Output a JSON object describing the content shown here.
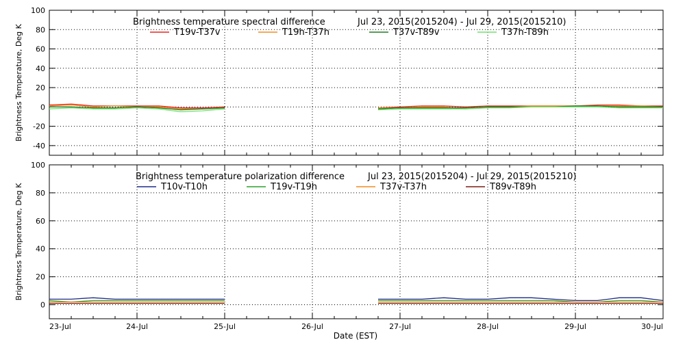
{
  "x_axis_label": "Date (EST)",
  "x_tick_labels": [
    "23-Jul",
    "24-Jul",
    "25-Jul",
    "26-Jul",
    "27-Jul",
    "28-Jul",
    "29-Jul",
    "30-Jul"
  ],
  "chart_data": [
    {
      "type": "line",
      "title": "Brightness temperature spectral difference",
      "date_range": "Jul 23, 2015(2015204) - Jul 29, 2015(2015210)",
      "ylabel": "Brightness Temperature, Deg K",
      "xlabel": "",
      "xlim": [
        "2015-07-23",
        "2015-07-30"
      ],
      "ylim": [
        -50,
        100
      ],
      "yticks": [
        -40,
        -20,
        0,
        20,
        40,
        60,
        80,
        100
      ],
      "grid": true,
      "legend_position": "top",
      "data_gap": [
        "2015-07-25",
        "2015-07-26 18:00"
      ],
      "series": [
        {
          "name": "T19v-T37v",
          "color": "#e8231f",
          "x": [
            "2015-07-23 00:00",
            "2015-07-23 06:00",
            "2015-07-23 12:00",
            "2015-07-23 18:00",
            "2015-07-24 00:00",
            "2015-07-24 06:00",
            "2015-07-24 12:00",
            "2015-07-24 18:00",
            "2015-07-25 00:00",
            "2015-07-26 18:00",
            "2015-07-27 00:00",
            "2015-07-27 06:00",
            "2015-07-27 12:00",
            "2015-07-27 18:00",
            "2015-07-28 00:00",
            "2015-07-28 06:00",
            "2015-07-28 12:00",
            "2015-07-28 18:00",
            "2015-07-29 00:00",
            "2015-07-29 06:00",
            "2015-07-29 12:00",
            "2015-07-29 18:00",
            "2015-07-30 00:00"
          ],
          "y": [
            2,
            3,
            1,
            1,
            1,
            1,
            -1,
            -1,
            0,
            -1,
            0,
            1,
            1,
            0,
            1,
            1,
            1,
            1,
            1,
            2,
            2,
            1,
            1
          ]
        },
        {
          "name": "T19h-T37h",
          "color": "#f08b1e",
          "x": [
            "2015-07-23 00:00",
            "2015-07-23 06:00",
            "2015-07-23 12:00",
            "2015-07-23 18:00",
            "2015-07-24 00:00",
            "2015-07-24 06:00",
            "2015-07-24 12:00",
            "2015-07-24 18:00",
            "2015-07-25 00:00",
            "2015-07-26 18:00",
            "2015-07-27 00:00",
            "2015-07-27 06:00",
            "2015-07-27 12:00",
            "2015-07-27 18:00",
            "2015-07-28 00:00",
            "2015-07-28 06:00",
            "2015-07-28 12:00",
            "2015-07-28 18:00",
            "2015-07-29 00:00",
            "2015-07-29 06:00",
            "2015-07-29 12:00",
            "2015-07-29 18:00",
            "2015-07-30 00:00"
          ],
          "y": [
            1,
            2,
            0,
            1,
            0,
            0,
            -2,
            -2,
            -1,
            -1,
            -1,
            0,
            0,
            -2,
            0,
            0,
            1,
            1,
            1,
            1,
            1,
            1,
            0
          ]
        },
        {
          "name": "T37v-T89v",
          "color": "#1f7a1f",
          "x": [
            "2015-07-23 00:00",
            "2015-07-23 06:00",
            "2015-07-23 12:00",
            "2015-07-23 18:00",
            "2015-07-24 00:00",
            "2015-07-24 06:00",
            "2015-07-24 12:00",
            "2015-07-24 18:00",
            "2015-07-25 00:00",
            "2015-07-26 18:00",
            "2015-07-27 00:00",
            "2015-07-27 06:00",
            "2015-07-27 12:00",
            "2015-07-27 18:00",
            "2015-07-28 00:00",
            "2015-07-28 06:00",
            "2015-07-28 12:00",
            "2015-07-28 18:00",
            "2015-07-29 00:00",
            "2015-07-29 06:00",
            "2015-07-29 12:00",
            "2015-07-29 18:00",
            "2015-07-30 00:00"
          ],
          "y": [
            0,
            0,
            -1,
            -1,
            0,
            -1,
            -3,
            -2,
            -1,
            -2,
            -1,
            -1,
            -1,
            -1,
            0,
            0,
            0,
            0,
            1,
            1,
            0,
            0,
            0
          ]
        },
        {
          "name": "T37h-T89h",
          "color": "#6fe06f",
          "x": [
            "2015-07-23 00:00",
            "2015-07-23 06:00",
            "2015-07-23 12:00",
            "2015-07-23 18:00",
            "2015-07-24 00:00",
            "2015-07-24 06:00",
            "2015-07-24 12:00",
            "2015-07-24 18:00",
            "2015-07-25 00:00",
            "2015-07-26 18:00",
            "2015-07-27 00:00",
            "2015-07-27 06:00",
            "2015-07-27 12:00",
            "2015-07-27 18:00",
            "2015-07-28 00:00",
            "2015-07-28 06:00",
            "2015-07-28 12:00",
            "2015-07-28 18:00",
            "2015-07-29 00:00",
            "2015-07-29 06:00",
            "2015-07-29 12:00",
            "2015-07-29 18:00",
            "2015-07-30 00:00"
          ],
          "y": [
            -2,
            -1,
            -2,
            -2,
            -1,
            -2,
            -5,
            -4,
            -2,
            -3,
            -2,
            -2,
            -2,
            -2,
            -1,
            -1,
            0,
            0,
            0,
            0,
            -1,
            -1,
            -1
          ]
        }
      ]
    },
    {
      "type": "line",
      "title": "Brightness temperature polarization difference",
      "date_range": "Jul 23, 2015(2015204) - Jul 29, 2015(2015210)",
      "ylabel": "Brightness Temperature, Deg K",
      "xlabel": "Date (EST)",
      "xlim": [
        "2015-07-23",
        "2015-07-30"
      ],
      "ylim": [
        -10,
        100
      ],
      "yticks": [
        0,
        20,
        40,
        60,
        80,
        100
      ],
      "grid": true,
      "legend_position": "top",
      "data_gap": [
        "2015-07-25",
        "2015-07-26 18:00"
      ],
      "series": [
        {
          "name": "T10v-T10h",
          "color": "#1c2a8c",
          "x": [
            "2015-07-23 00:00",
            "2015-07-23 06:00",
            "2015-07-23 12:00",
            "2015-07-23 18:00",
            "2015-07-24 00:00",
            "2015-07-24 06:00",
            "2015-07-24 12:00",
            "2015-07-24 18:00",
            "2015-07-25 00:00",
            "2015-07-26 18:00",
            "2015-07-27 00:00",
            "2015-07-27 06:00",
            "2015-07-27 12:00",
            "2015-07-27 18:00",
            "2015-07-28 00:00",
            "2015-07-28 06:00",
            "2015-07-28 12:00",
            "2015-07-28 18:00",
            "2015-07-29 00:00",
            "2015-07-29 06:00",
            "2015-07-29 12:00",
            "2015-07-29 18:00",
            "2015-07-30 00:00"
          ],
          "y": [
            4,
            4,
            5,
            4,
            4,
            4,
            4,
            4,
            4,
            4,
            4,
            4,
            5,
            4,
            4,
            5,
            5,
            4,
            3,
            3,
            5,
            5,
            3
          ]
        },
        {
          "name": "T19v-T19h",
          "color": "#2ca02c",
          "x": [
            "2015-07-23 00:00",
            "2015-07-23 06:00",
            "2015-07-23 12:00",
            "2015-07-23 18:00",
            "2015-07-24 00:00",
            "2015-07-24 06:00",
            "2015-07-24 12:00",
            "2015-07-24 18:00",
            "2015-07-25 00:00",
            "2015-07-26 18:00",
            "2015-07-27 00:00",
            "2015-07-27 06:00",
            "2015-07-27 12:00",
            "2015-07-27 18:00",
            "2015-07-28 00:00",
            "2015-07-28 06:00",
            "2015-07-28 12:00",
            "2015-07-28 18:00",
            "2015-07-29 00:00",
            "2015-07-29 06:00",
            "2015-07-29 12:00",
            "2015-07-29 18:00",
            "2015-07-30 00:00"
          ],
          "y": [
            3,
            2,
            3,
            3,
            3,
            3,
            3,
            3,
            3,
            3,
            3,
            3,
            3,
            3,
            3,
            3,
            3,
            3,
            2,
            2,
            3,
            3,
            2
          ]
        },
        {
          "name": "T37v-T37h",
          "color": "#f08b1e",
          "x": [
            "2015-07-23 00:00",
            "2015-07-23 06:00",
            "2015-07-23 12:00",
            "2015-07-23 18:00",
            "2015-07-24 00:00",
            "2015-07-24 06:00",
            "2015-07-24 12:00",
            "2015-07-24 18:00",
            "2015-07-25 00:00",
            "2015-07-26 18:00",
            "2015-07-27 00:00",
            "2015-07-27 06:00",
            "2015-07-27 12:00",
            "2015-07-27 18:00",
            "2015-07-28 00:00",
            "2015-07-28 06:00",
            "2015-07-28 12:00",
            "2015-07-28 18:00",
            "2015-07-29 00:00",
            "2015-07-29 06:00",
            "2015-07-29 12:00",
            "2015-07-29 18:00",
            "2015-07-30 00:00"
          ],
          "y": [
            2,
            2,
            2,
            2,
            2,
            2,
            2,
            2,
            2,
            2,
            2,
            2,
            2,
            2,
            2,
            2,
            2,
            2,
            2,
            2,
            2,
            2,
            2
          ]
        },
        {
          "name": "T89v-T89h",
          "color": "#7a1a10",
          "x": [
            "2015-07-23 00:00",
            "2015-07-23 06:00",
            "2015-07-23 12:00",
            "2015-07-23 18:00",
            "2015-07-24 00:00",
            "2015-07-24 06:00",
            "2015-07-24 12:00",
            "2015-07-24 18:00",
            "2015-07-25 00:00",
            "2015-07-26 18:00",
            "2015-07-27 00:00",
            "2015-07-27 06:00",
            "2015-07-27 12:00",
            "2015-07-27 18:00",
            "2015-07-28 00:00",
            "2015-07-28 06:00",
            "2015-07-28 12:00",
            "2015-07-28 18:00",
            "2015-07-29 00:00",
            "2015-07-29 06:00",
            "2015-07-29 12:00",
            "2015-07-29 18:00",
            "2015-07-30 00:00"
          ],
          "y": [
            1,
            1,
            1,
            1,
            1,
            1,
            1,
            1,
            1,
            1,
            1,
            1,
            1,
            1,
            1,
            1,
            1,
            1,
            1,
            1,
            1,
            1,
            1
          ]
        }
      ]
    }
  ]
}
